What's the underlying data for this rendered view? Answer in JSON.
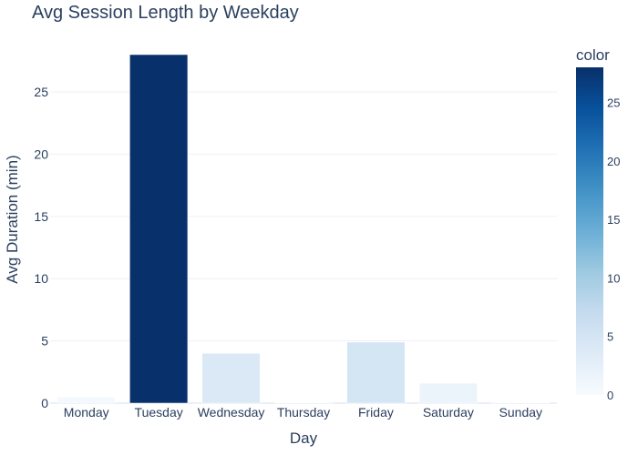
{
  "chart_data": {
    "type": "bar",
    "title": "Avg Session Length by Weekday",
    "xlabel": "Day",
    "ylabel": "Avg Duration (min)",
    "categories": [
      "Monday",
      "Tuesday",
      "Wednesday",
      "Thursday",
      "Friday",
      "Saturday",
      "Sunday"
    ],
    "values": [
      0.5,
      28.0,
      4.0,
      0.05,
      4.9,
      1.6,
      0.05
    ],
    "ylim": [
      0,
      28.0
    ],
    "yticks": [
      0,
      5,
      10,
      15,
      20,
      25
    ],
    "grid": true,
    "legend": "none",
    "colorbar": {
      "title": "color",
      "range": [
        0,
        28.0
      ],
      "ticks": [
        0,
        5,
        10,
        15,
        20,
        25
      ],
      "colorscale": [
        "#f7fbff",
        "#deebf7",
        "#c6dbef",
        "#9ecae1",
        "#6baed6",
        "#4292c6",
        "#2171b5",
        "#08519c",
        "#08306b"
      ]
    }
  }
}
